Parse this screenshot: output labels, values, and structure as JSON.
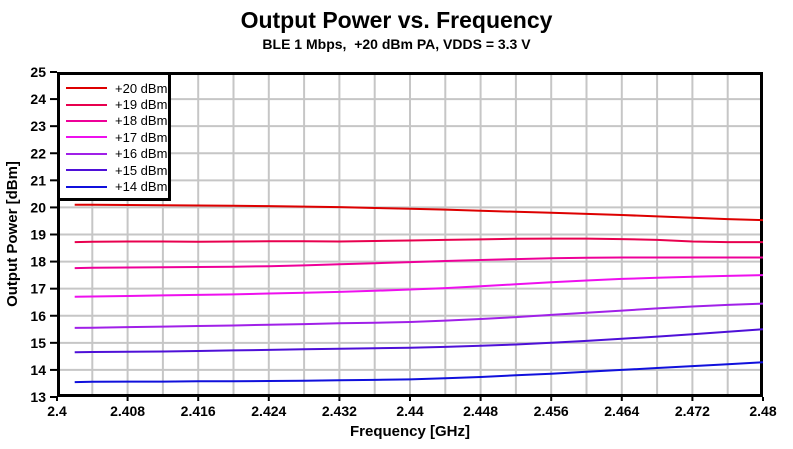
{
  "header": {
    "title": "Output Power vs. Frequency",
    "subtitle": "BLE 1 Mbps,  +20 dBm PA, VDDS = 3.3 V"
  },
  "chart_data": {
    "type": "line",
    "title": "Output Power vs. Frequency",
    "subtitle": "BLE 1 Mbps,  +20 dBm PA, VDDS = 3.3 V",
    "xlabel": "Frequency [GHz]",
    "ylabel": "Output Power [dBm]",
    "xlim": [
      2.4,
      2.48
    ],
    "ylim": [
      13,
      25
    ],
    "grid": true,
    "grid_color": "#c6c6c6",
    "border_color": "#000000",
    "legend_position": "top-left",
    "x_tick_labels": [
      "2.4",
      "2.408",
      "2.416",
      "2.424",
      "2.432",
      "2.44",
      "2.448",
      "2.456",
      "2.464",
      "2.472",
      "2.48"
    ],
    "x_tick_values": [
      2.4,
      2.408,
      2.416,
      2.424,
      2.432,
      2.44,
      2.448,
      2.456,
      2.464,
      2.472,
      2.48
    ],
    "x_minor_step": 0.004,
    "y_tick_values": [
      13,
      14,
      15,
      16,
      17,
      18,
      19,
      20,
      21,
      22,
      23,
      24,
      25
    ],
    "y_tick_step": 1,
    "x": [
      2.402,
      2.404,
      2.408,
      2.412,
      2.416,
      2.42,
      2.424,
      2.428,
      2.432,
      2.436,
      2.44,
      2.444,
      2.448,
      2.452,
      2.456,
      2.46,
      2.464,
      2.468,
      2.472,
      2.476,
      2.48
    ],
    "series": [
      {
        "name": "+20 dBm",
        "color": "#dd0000",
        "values": [
          20.1,
          20.1,
          20.09,
          20.08,
          20.07,
          20.06,
          20.05,
          20.03,
          20.01,
          19.98,
          19.95,
          19.92,
          19.88,
          19.84,
          19.8,
          19.76,
          19.72,
          19.67,
          19.62,
          19.57,
          19.53
        ]
      },
      {
        "name": "+19 dBm",
        "color": "#e8004e",
        "values": [
          18.72,
          18.73,
          18.74,
          18.74,
          18.73,
          18.74,
          18.75,
          18.75,
          18.74,
          18.76,
          18.78,
          18.8,
          18.82,
          18.84,
          18.85,
          18.85,
          18.83,
          18.8,
          18.74,
          18.72,
          18.72
        ]
      },
      {
        "name": "+18 dBm",
        "color": "#ee0098",
        "values": [
          17.76,
          17.77,
          17.78,
          17.79,
          17.8,
          17.81,
          17.83,
          17.86,
          17.9,
          17.94,
          17.98,
          18.02,
          18.06,
          18.09,
          18.12,
          18.14,
          18.15,
          18.15,
          18.15,
          18.15,
          18.15
        ]
      },
      {
        "name": "+17 dBm",
        "color": "#ee10ee",
        "values": [
          16.7,
          16.71,
          16.73,
          16.75,
          16.77,
          16.79,
          16.82,
          16.85,
          16.88,
          16.92,
          16.97,
          17.02,
          17.09,
          17.16,
          17.24,
          17.3,
          17.36,
          17.4,
          17.44,
          17.47,
          17.5
        ]
      },
      {
        "name": "+16 dBm",
        "color": "#a020e8",
        "values": [
          15.55,
          15.56,
          15.58,
          15.6,
          15.62,
          15.64,
          15.67,
          15.69,
          15.72,
          15.74,
          15.77,
          15.82,
          15.88,
          15.95,
          16.03,
          16.11,
          16.19,
          16.27,
          16.34,
          16.4,
          16.45
        ]
      },
      {
        "name": "+15 dBm",
        "color": "#4e10d8",
        "values": [
          14.65,
          14.66,
          14.67,
          14.68,
          14.7,
          14.72,
          14.74,
          14.76,
          14.78,
          14.8,
          14.82,
          14.85,
          14.89,
          14.94,
          15.0,
          15.07,
          15.15,
          15.23,
          15.32,
          15.41,
          15.5
        ]
      },
      {
        "name": "+14 dBm",
        "color": "#1010dc",
        "values": [
          13.55,
          13.56,
          13.57,
          13.57,
          13.58,
          13.58,
          13.59,
          13.6,
          13.62,
          13.63,
          13.65,
          13.69,
          13.74,
          13.8,
          13.86,
          13.93,
          14.0,
          14.07,
          14.14,
          14.21,
          14.28
        ]
      }
    ]
  }
}
